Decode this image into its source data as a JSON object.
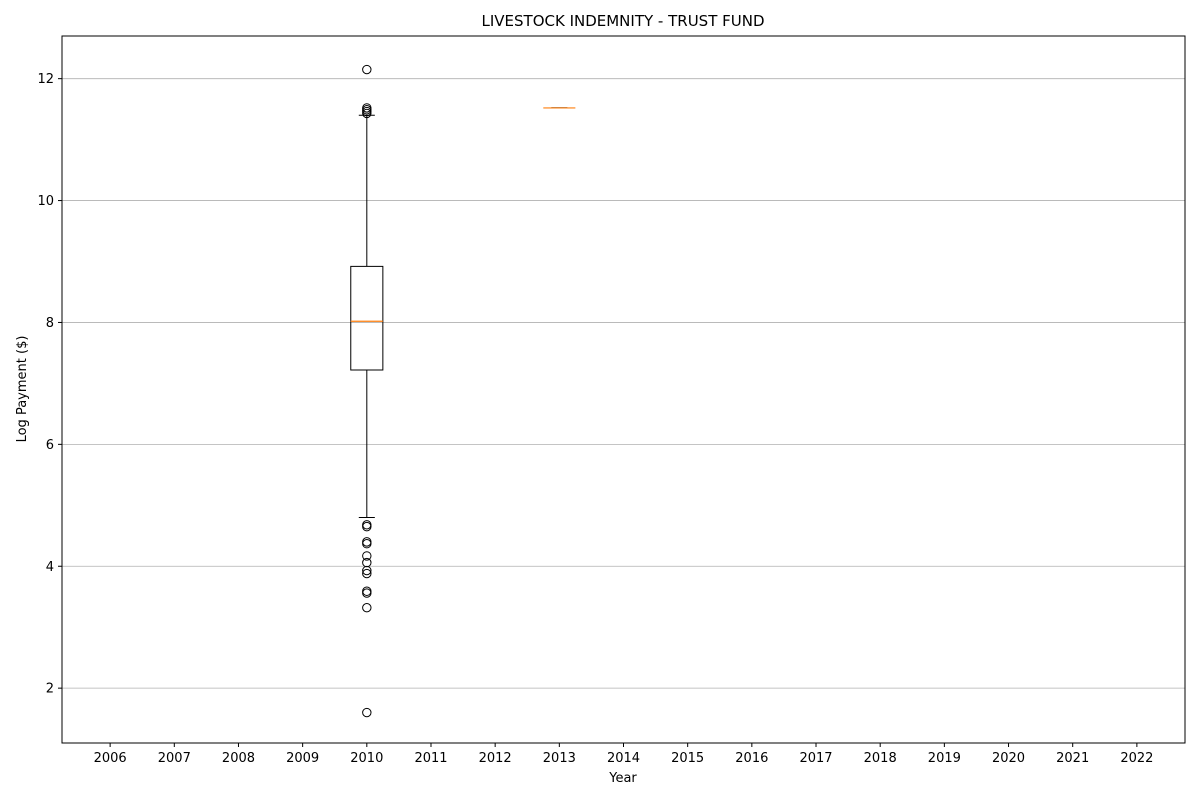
{
  "chart_data": {
    "type": "box",
    "title": "LIVESTOCK INDEMNITY - TRUST FUND",
    "xlabel": "Year",
    "ylabel": "Log Payment ($)",
    "categories": [
      "2006",
      "2007",
      "2008",
      "2009",
      "2010",
      "2011",
      "2012",
      "2013",
      "2014",
      "2015",
      "2016",
      "2017",
      "2018",
      "2019",
      "2020",
      "2021",
      "2022"
    ],
    "ylim": [
      1.1,
      12.7
    ],
    "yticks": [
      2,
      4,
      6,
      8,
      10,
      12
    ],
    "grid": "y",
    "boxes": [
      {
        "category": "2010",
        "whisker_low": 4.8,
        "q1": 7.22,
        "median": 8.02,
        "q3": 8.92,
        "whisker_high": 11.4,
        "outliers": [
          12.15,
          11.52,
          11.49,
          11.46,
          11.43,
          4.68,
          4.65,
          4.4,
          4.37,
          4.17,
          4.06,
          3.93,
          3.88,
          3.59,
          3.56,
          3.32,
          1.6
        ]
      },
      {
        "category": "2013",
        "whisker_low": 11.52,
        "q1": 11.52,
        "median": 11.52,
        "q3": 11.52,
        "whisker_high": 11.52,
        "outliers": []
      }
    ],
    "colors": {
      "box": "#000000",
      "median": "#ff7f0e",
      "grid": "#b0b0b0"
    }
  }
}
